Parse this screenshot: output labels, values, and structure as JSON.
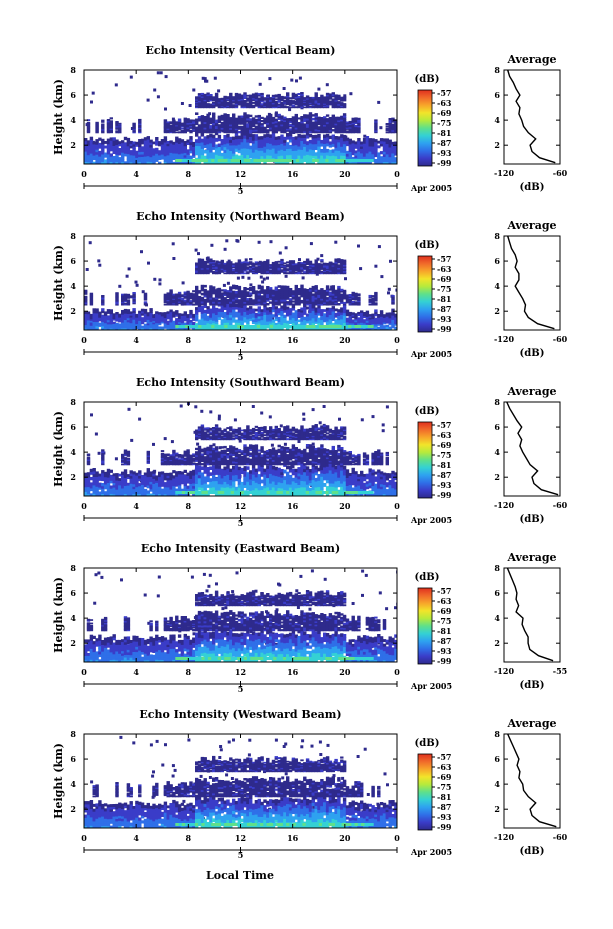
{
  "figure": {
    "xlabel": "Local Time",
    "date_label": "Apr 2005",
    "day_marker": "5",
    "colorbar_unit": "(dB)",
    "colorbar_ticks": [
      "-57",
      "-63",
      "-69",
      "-75",
      "-81",
      "-87",
      "-93",
      "-99"
    ],
    "colorbar_colors": [
      "#2e2a8c",
      "#3a3cc8",
      "#2f6fe8",
      "#2ea2f0",
      "#34d1d4",
      "#5fe08a",
      "#b6ea3c",
      "#f2e42a",
      "#f7a52a",
      "#f06a2a",
      "#e0301e"
    ],
    "average_title": "Average",
    "average_unit": "(dB)"
  },
  "chart_data": [
    {
      "type": "heatmap",
      "title": "Echo Intensity (Vertical Beam)",
      "ylabel": "Height (km)",
      "xlabel": "",
      "x_ticks": [
        "0",
        "4",
        "8",
        "12",
        "16",
        "20",
        "0"
      ],
      "y_ticks": [
        "2",
        "4",
        "6",
        "8"
      ],
      "xlim": [
        0,
        24
      ],
      "ylim": [
        0.5,
        8
      ],
      "clim": [
        -99,
        -57
      ],
      "colorbar_label": "(dB)",
      "cloud_layers_km": [
        [
          0.5,
          2.5
        ],
        [
          3.0,
          4.0
        ],
        [
          5.0,
          6.0
        ]
      ],
      "profile": {
        "title": "Average",
        "xlabel": "(dB)",
        "x_ticks": [
          "-120",
          "-60"
        ],
        "y_ticks": [
          "2",
          "4",
          "6",
          "8"
        ],
        "xlim": [
          -120,
          -60
        ],
        "height_km": [
          0.6,
          1.0,
          1.5,
          2.0,
          2.5,
          3.0,
          3.5,
          4.0,
          4.5,
          5.0,
          5.5,
          6.0,
          6.5,
          7.0,
          7.5,
          8.0
        ],
        "intensity_db": [
          -65,
          -82,
          -90,
          -92,
          -86,
          -94,
          -99,
          -101,
          -104,
          -103,
          -107,
          -103,
          -107,
          -110,
          -114,
          -116
        ]
      }
    },
    {
      "type": "heatmap",
      "title": "Echo Intensity (Northward Beam)",
      "ylabel": "Height (km)",
      "xlabel": "",
      "x_ticks": [
        "0",
        "4",
        "8",
        "12",
        "16",
        "20",
        "0"
      ],
      "y_ticks": [
        "2",
        "4",
        "6",
        "8"
      ],
      "xlim": [
        0,
        24
      ],
      "ylim": [
        0.5,
        8
      ],
      "clim": [
        -99,
        -57
      ],
      "colorbar_label": "(dB)",
      "cloud_layers_km": [
        [
          0.5,
          2.0
        ],
        [
          2.5,
          3.5
        ],
        [
          5.0,
          6.0
        ]
      ],
      "profile": {
        "title": "Average",
        "xlabel": "(dB)",
        "x_ticks": [
          "-120",
          "-60"
        ],
        "y_ticks": [
          "2",
          "4",
          "6",
          "8"
        ],
        "xlim": [
          -120,
          -60
        ],
        "height_km": [
          0.6,
          1.0,
          1.5,
          2.0,
          2.5,
          3.0,
          3.5,
          4.0,
          4.5,
          5.0,
          5.5,
          6.0,
          6.5,
          7.0,
          7.5,
          8.0
        ],
        "intensity_db": [
          -66,
          -84,
          -94,
          -98,
          -97,
          -100,
          -104,
          -108,
          -104,
          -104,
          -108,
          -106,
          -108,
          -112,
          -114,
          -116
        ]
      }
    },
    {
      "type": "heatmap",
      "title": "Echo Intensity (Southward Beam)",
      "ylabel": "Height (km)",
      "xlabel": "",
      "x_ticks": [
        "0",
        "4",
        "8",
        "12",
        "16",
        "20",
        "0"
      ],
      "y_ticks": [
        "2",
        "4",
        "6",
        "8"
      ],
      "xlim": [
        0,
        24
      ],
      "ylim": [
        0.5,
        8
      ],
      "clim": [
        -99,
        -57
      ],
      "colorbar_label": "(dB)",
      "cloud_layers_km": [
        [
          0.5,
          2.5
        ],
        [
          3.0,
          4.0
        ],
        [
          5.0,
          6.0
        ]
      ],
      "profile": {
        "title": "Average",
        "xlabel": "(dB)",
        "x_ticks": [
          "-120",
          "-60"
        ],
        "y_ticks": [
          "2",
          "4",
          "6",
          "8"
        ],
        "xlim": [
          -120,
          -60
        ],
        "height_km": [
          0.6,
          1.0,
          1.5,
          2.0,
          2.5,
          3.0,
          3.5,
          4.0,
          4.5,
          5.0,
          5.5,
          6.0,
          6.5,
          7.0,
          7.5,
          8.0
        ],
        "intensity_db": [
          -62,
          -80,
          -88,
          -90,
          -84,
          -92,
          -96,
          -100,
          -103,
          -101,
          -105,
          -101,
          -106,
          -110,
          -114,
          -117
        ]
      }
    },
    {
      "type": "heatmap",
      "title": "Echo Intensity (Eastward Beam)",
      "ylabel": "Height (km)",
      "xlabel": "",
      "x_ticks": [
        "0",
        "4",
        "8",
        "12",
        "16",
        "20",
        "0"
      ],
      "y_ticks": [
        "2",
        "4",
        "6",
        "8"
      ],
      "xlim": [
        0,
        24
      ],
      "ylim": [
        0.5,
        8
      ],
      "clim": [
        -99,
        -57
      ],
      "colorbar_label": "(dB)",
      "cloud_layers_km": [
        [
          0.5,
          2.5
        ],
        [
          3.0,
          4.0
        ],
        [
          5.0,
          6.0
        ]
      ],
      "profile": {
        "title": "Average",
        "xlabel": "(dB)",
        "x_ticks": [
          "-120",
          "-55"
        ],
        "y_ticks": [
          "2",
          "4",
          "6",
          "8"
        ],
        "xlim": [
          -120,
          -55
        ],
        "height_km": [
          0.6,
          1.0,
          1.5,
          2.0,
          2.5,
          3.0,
          3.5,
          4.0,
          4.5,
          5.0,
          5.5,
          6.0,
          6.5,
          7.0,
          7.5,
          8.0
        ],
        "intensity_db": [
          -63,
          -80,
          -90,
          -92,
          -92,
          -96,
          -99,
          -98,
          -106,
          -103,
          -106,
          -105,
          -107,
          -110,
          -113,
          -116
        ]
      }
    },
    {
      "type": "heatmap",
      "title": "Echo Intensity (Westward Beam)",
      "ylabel": "Height (km)",
      "xlabel": "Local Time",
      "x_ticks": [
        "0",
        "4",
        "8",
        "12",
        "16",
        "20",
        "0"
      ],
      "y_ticks": [
        "2",
        "4",
        "6",
        "8"
      ],
      "xlim": [
        0,
        24
      ],
      "ylim": [
        0.5,
        8
      ],
      "clim": [
        -99,
        -57
      ],
      "colorbar_label": "(dB)",
      "cloud_layers_km": [
        [
          0.5,
          2.5
        ],
        [
          3.0,
          4.0
        ],
        [
          5.0,
          6.0
        ]
      ],
      "profile": {
        "title": "Average",
        "xlabel": "(dB)",
        "x_ticks": [
          "-120",
          "-60"
        ],
        "y_ticks": [
          "2",
          "4",
          "6",
          "8"
        ],
        "xlim": [
          -120,
          -60
        ],
        "height_km": [
          0.6,
          1.0,
          1.5,
          2.0,
          2.5,
          3.0,
          3.5,
          4.0,
          4.5,
          5.0,
          5.5,
          6.0,
          6.5,
          7.0,
          7.5,
          8.0
        ],
        "intensity_db": [
          -64,
          -82,
          -90,
          -92,
          -86,
          -94,
          -99,
          -100,
          -104,
          -103,
          -106,
          -104,
          -107,
          -110,
          -113,
          -116
        ]
      }
    }
  ]
}
